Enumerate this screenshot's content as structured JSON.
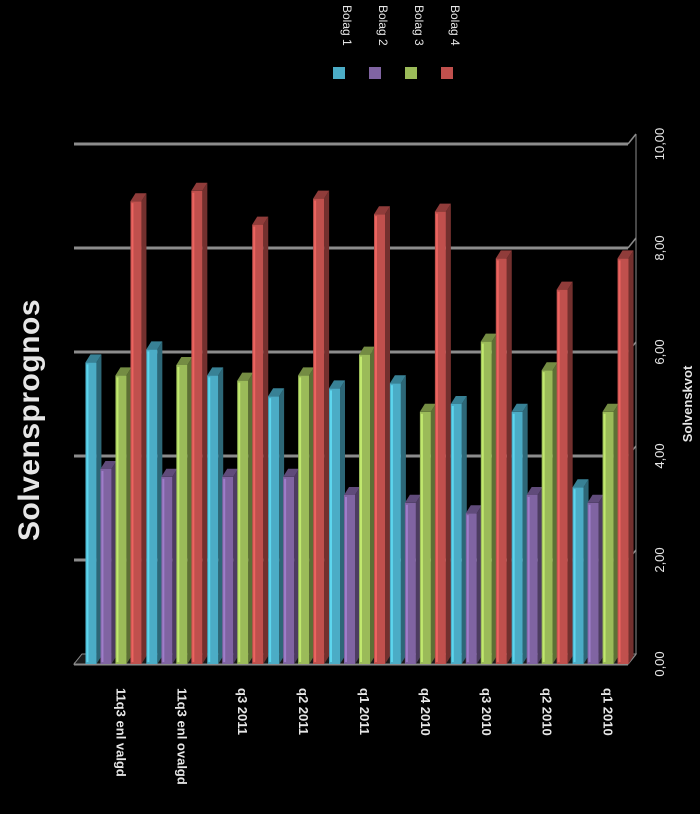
{
  "chart_data": {
    "type": "bar",
    "title": "Solvensprognos",
    "ylabel": "Solvenskvot",
    "xlabel": "",
    "ylim": [
      0,
      10
    ],
    "yticks": [
      "0,00",
      "2,00",
      "4,00",
      "6,00",
      "8,00",
      "10,00"
    ],
    "grid": true,
    "legend_position": "top",
    "orientation": "rotated-90-clockwise",
    "categories": [
      "11q3 enl valgd",
      "11q3 enl ovalgd",
      "q3 2011",
      "q2 2011",
      "q1 2011",
      "q4 2010",
      "q3 2010",
      "q2 2010",
      "q1 2010"
    ],
    "series": [
      {
        "name": "Bolag 1",
        "color": "#4bacc6",
        "values": [
          5.8,
          6.05,
          5.55,
          5.15,
          5.3,
          5.4,
          5.0,
          4.85,
          3.4
        ]
      },
      {
        "name": "Bolag 2",
        "color": "#8064a2",
        "values": [
          3.75,
          3.6,
          3.6,
          3.6,
          3.25,
          3.1,
          2.9,
          3.25,
          3.1
        ]
      },
      {
        "name": "Bolag 3",
        "color": "#9bbb59",
        "values": [
          5.55,
          5.75,
          5.45,
          5.55,
          5.95,
          4.85,
          6.2,
          5.65,
          4.85
        ]
      },
      {
        "name": "Bolag 4",
        "color": "#c0504d",
        "values": [
          8.9,
          9.1,
          8.45,
          8.95,
          8.65,
          8.7,
          7.8,
          7.2,
          7.8
        ]
      }
    ]
  }
}
